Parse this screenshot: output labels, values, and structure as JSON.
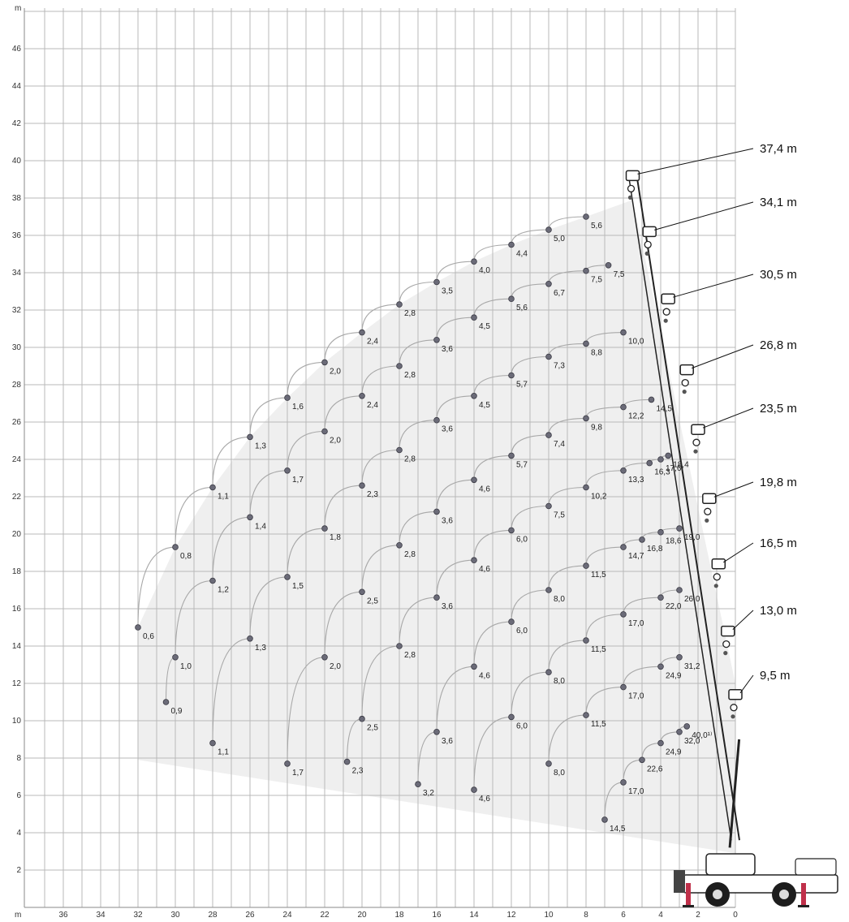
{
  "chart_data": {
    "type": "scatter",
    "title": "",
    "xlabel": "m",
    "ylabel": "m",
    "xlim": [
      37.5,
      -2
    ],
    "ylim": [
      0,
      48.5
    ],
    "x_ticks": [
      "36",
      "34",
      "32",
      "30",
      "28",
      "26",
      "24",
      "22",
      "20",
      "18",
      "16",
      "14",
      "12",
      "10",
      "8",
      "6",
      "4",
      "2",
      "0"
    ],
    "y_ticks": [
      "2",
      "4",
      "6",
      "8",
      "10",
      "12",
      "14",
      "16",
      "18",
      "20",
      "22",
      "24",
      "26",
      "28",
      "30",
      "32",
      "34",
      "36",
      "38",
      "40",
      "42",
      "44",
      "46"
    ],
    "colors": {
      "grid": "#b9b9b9",
      "area": "#efefef",
      "curve": "#a8a8a8",
      "point": "#6b6b78",
      "boom": "#222222"
    },
    "boom_lengths": [
      {
        "label": "37,4 m",
        "tip": [
          5.5,
          39.2
        ]
      },
      {
        "label": "34,1 m",
        "tip": [
          4.6,
          36.2
        ]
      },
      {
        "label": "30,5 m",
        "tip": [
          3.6,
          32.6
        ]
      },
      {
        "label": "26,8 m",
        "tip": [
          2.6,
          28.8
        ]
      },
      {
        "label": "23,5 m",
        "tip": [
          2.0,
          25.6
        ]
      },
      {
        "label": "19,8 m",
        "tip": [
          1.4,
          21.9
        ]
      },
      {
        "label": "16,5 m",
        "tip": [
          0.9,
          18.4
        ]
      },
      {
        "label": "13,0 m",
        "tip": [
          0.4,
          14.8
        ]
      },
      {
        "label": "9,5 m",
        "tip": [
          0.0,
          11.4
        ]
      }
    ],
    "series": [
      {
        "points": [
          {
            "x": 32,
            "y": 15,
            "label": "0,6"
          },
          {
            "x": 30,
            "y": 19.3,
            "label": "0,8"
          },
          {
            "x": 28,
            "y": 22.5,
            "label": "1,1"
          },
          {
            "x": 26,
            "y": 25.2,
            "label": "1,3"
          },
          {
            "x": 24,
            "y": 27.3,
            "label": "1,6"
          },
          {
            "x": 22,
            "y": 29.2,
            "label": "2,0"
          },
          {
            "x": 20,
            "y": 30.8,
            "label": "2,4"
          },
          {
            "x": 18,
            "y": 32.3,
            "label": "2,8"
          },
          {
            "x": 16,
            "y": 33.5,
            "label": "3,5"
          },
          {
            "x": 14,
            "y": 34.6,
            "label": "4,0"
          },
          {
            "x": 12,
            "y": 35.5,
            "label": "4,4"
          },
          {
            "x": 10,
            "y": 36.3,
            "label": "5,0"
          },
          {
            "x": 8,
            "y": 37,
            "label": "5,6"
          }
        ]
      },
      {
        "points": [
          {
            "x": 30.5,
            "y": 11,
            "label": "0,9"
          },
          {
            "x": 30,
            "y": 13.4,
            "label": "1,0"
          },
          {
            "x": 28,
            "y": 17.5,
            "label": "1,2"
          },
          {
            "x": 26,
            "y": 20.9,
            "label": "1,4"
          },
          {
            "x": 24,
            "y": 23.4,
            "label": "1,7"
          },
          {
            "x": 22,
            "y": 25.5,
            "label": "2,0"
          },
          {
            "x": 20,
            "y": 27.4,
            "label": "2,4"
          },
          {
            "x": 18,
            "y": 29,
            "label": "2,8"
          },
          {
            "x": 16,
            "y": 30.4,
            "label": "3,6"
          },
          {
            "x": 14,
            "y": 31.6,
            "label": "4,5"
          },
          {
            "x": 12,
            "y": 32.6,
            "label": "5,6"
          },
          {
            "x": 10,
            "y": 33.4,
            "label": "6,7"
          },
          {
            "x": 8,
            "y": 34.1,
            "label": "7,5"
          },
          {
            "x": 6.8,
            "y": 34.4,
            "label": "7,5"
          }
        ]
      },
      {
        "points": [
          {
            "x": 28,
            "y": 8.8,
            "label": "1,1"
          },
          {
            "x": 26,
            "y": 14.4,
            "label": "1,3"
          },
          {
            "x": 24,
            "y": 17.7,
            "label": "1,5"
          },
          {
            "x": 22,
            "y": 20.3,
            "label": "1,8"
          },
          {
            "x": 20,
            "y": 22.6,
            "label": "2,3"
          },
          {
            "x": 18,
            "y": 24.5,
            "label": "2,8"
          },
          {
            "x": 16,
            "y": 26.1,
            "label": "3,6"
          },
          {
            "x": 14,
            "y": 27.4,
            "label": "4,5"
          },
          {
            "x": 12,
            "y": 28.5,
            "label": "5,7"
          },
          {
            "x": 10,
            "y": 29.5,
            "label": "7,3"
          },
          {
            "x": 8,
            "y": 30.2,
            "label": "8,8"
          },
          {
            "x": 6,
            "y": 30.8,
            "label": "10,0"
          }
        ]
      },
      {
        "points": [
          {
            "x": 24,
            "y": 7.7,
            "label": "1,7"
          },
          {
            "x": 22,
            "y": 13.4,
            "label": "2,0"
          },
          {
            "x": 20,
            "y": 16.9,
            "label": "2,5"
          },
          {
            "x": 18,
            "y": 19.4,
            "label": "2,8"
          },
          {
            "x": 16,
            "y": 21.2,
            "label": "3,6"
          },
          {
            "x": 14,
            "y": 22.9,
            "label": "4,6"
          },
          {
            "x": 12,
            "y": 24.2,
            "label": "5,7"
          },
          {
            "x": 10,
            "y": 25.3,
            "label": "7,4"
          },
          {
            "x": 8,
            "y": 26.2,
            "label": "9,8"
          },
          {
            "x": 6,
            "y": 26.8,
            "label": "12,2"
          },
          {
            "x": 4.5,
            "y": 27.2,
            "label": "14,5"
          }
        ]
      },
      {
        "points": [
          {
            "x": 20.8,
            "y": 7.8,
            "label": "2,3"
          },
          {
            "x": 20,
            "y": 10.1,
            "label": "2,5"
          },
          {
            "x": 18,
            "y": 14,
            "label": "2,8"
          },
          {
            "x": 16,
            "y": 16.6,
            "label": "3,6"
          },
          {
            "x": 14,
            "y": 18.6,
            "label": "4,6"
          },
          {
            "x": 12,
            "y": 20.2,
            "label": "6,0"
          },
          {
            "x": 10,
            "y": 21.5,
            "label": "7,5"
          },
          {
            "x": 8,
            "y": 22.5,
            "label": "10,2"
          },
          {
            "x": 6,
            "y": 23.4,
            "label": "13,3"
          },
          {
            "x": 4.6,
            "y": 23.8,
            "label": "16,3"
          },
          {
            "x": 4,
            "y": 24,
            "label": "17,6"
          },
          {
            "x": 3.6,
            "y": 24.2,
            "label": "18,4"
          }
        ]
      },
      {
        "points": [
          {
            "x": 17,
            "y": 6.6,
            "label": "3,2"
          },
          {
            "x": 16,
            "y": 9.4,
            "label": "3,6"
          },
          {
            "x": 14,
            "y": 12.9,
            "label": "4,6"
          },
          {
            "x": 12,
            "y": 15.3,
            "label": "6,0"
          },
          {
            "x": 10,
            "y": 17,
            "label": "8,0"
          },
          {
            "x": 8,
            "y": 18.3,
            "label": "11,5"
          },
          {
            "x": 6,
            "y": 19.3,
            "label": "14,7"
          },
          {
            "x": 5,
            "y": 19.7,
            "label": "16,8"
          },
          {
            "x": 4,
            "y": 20.1,
            "label": "18,6"
          },
          {
            "x": 3,
            "y": 20.3,
            "label": "19,0"
          }
        ]
      },
      {
        "points": [
          {
            "x": 14,
            "y": 6.3,
            "label": "4,6"
          },
          {
            "x": 12,
            "y": 10.2,
            "label": "6,0"
          },
          {
            "x": 10,
            "y": 12.6,
            "label": "8,0"
          },
          {
            "x": 8,
            "y": 14.3,
            "label": "11,5"
          },
          {
            "x": 6,
            "y": 15.7,
            "label": "17,0"
          },
          {
            "x": 4,
            "y": 16.6,
            "label": "22,0"
          },
          {
            "x": 3,
            "y": 17,
            "label": "26,0"
          }
        ]
      },
      {
        "points": [
          {
            "x": 10,
            "y": 7.7,
            "label": "8,0"
          },
          {
            "x": 8,
            "y": 10.3,
            "label": "11,5"
          },
          {
            "x": 6,
            "y": 11.8,
            "label": "17,0"
          },
          {
            "x": 4,
            "y": 12.9,
            "label": "24,9"
          },
          {
            "x": 3,
            "y": 13.4,
            "label": "31,2"
          }
        ]
      },
      {
        "points": [
          {
            "x": 7,
            "y": 4.7,
            "label": "14,5"
          },
          {
            "x": 6,
            "y": 6.7,
            "label": "17,0"
          },
          {
            "x": 5,
            "y": 7.9,
            "label": "22,6"
          },
          {
            "x": 4,
            "y": 8.8,
            "label": "24,9"
          },
          {
            "x": 3,
            "y": 9.4,
            "label": "32,0"
          },
          {
            "x": 2.6,
            "y": 9.7,
            "label": "40,0¹⁾"
          }
        ]
      }
    ]
  }
}
